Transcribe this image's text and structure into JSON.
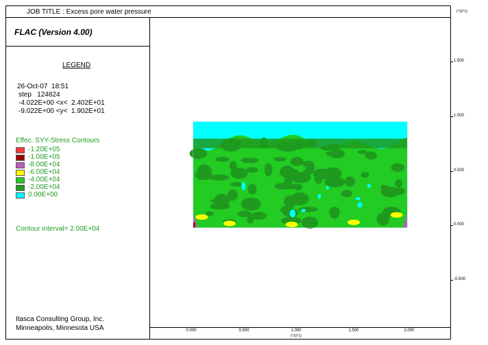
{
  "header": {
    "title": "JOB TITLE : Excess pore water pressure"
  },
  "program": {
    "name": "FLAC (Version 4.00)"
  },
  "legend": {
    "heading": "LEGEND",
    "date": "26-Oct-07  18:51",
    "step": "step   124824",
    "x_range": "-4.022E+00 <x<  2.402E+01",
    "y_range": "-9.022E+00 <y<  1.902E+01"
  },
  "contours": {
    "title": "Effec. SYY-Stress Contours",
    "items": [
      {
        "label": "-1.20E+05",
        "color": "#ff3a3a"
      },
      {
        "label": "-1.00E+05",
        "color": "#a00000"
      },
      {
        "label": "-8.00E+04",
        "color": "#b85fb8"
      },
      {
        "label": "-6.00E+04",
        "color": "#ffff00"
      },
      {
        "label": "-4.00E+04",
        "color": "#22cc22"
      },
      {
        "label": "-2.00E+04",
        "color": "#1f9a1f"
      },
      {
        "label": " 0.00E+00",
        "color": "#00ffff"
      }
    ],
    "interval": "Contour interval=  2.00E+04"
  },
  "footer": {
    "company": "Itasca Consulting Group, Inc.",
    "location": "Minneapolis, Minnesota  USA"
  },
  "chart_data": {
    "type": "heatmap",
    "axis_scale_label": "(*10^1)",
    "x_ticks": [
      "0.000",
      "0.500",
      "1.000",
      "1.500",
      "2.000"
    ],
    "x_tick_values": [
      0,
      0.5,
      1.0,
      1.5,
      2.0
    ],
    "y_ticks": [
      "1.500",
      "1.000",
      "0.500",
      "0.000",
      "-0.500"
    ],
    "y_tick_values": [
      1.5,
      1.0,
      0.5,
      0.0,
      -0.5
    ],
    "xlim": [
      -0.4022,
      2.402
    ],
    "ylim": [
      -0.9022,
      1.902
    ],
    "domain": {
      "x": [
        0,
        2.0
      ],
      "y": [
        0,
        0.96
      ]
    }
  }
}
